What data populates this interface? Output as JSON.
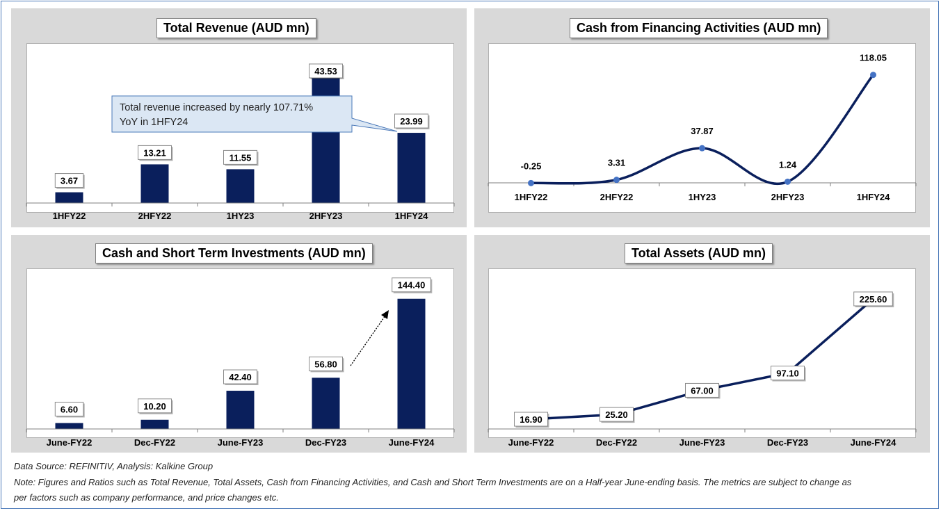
{
  "colors": {
    "bar": "#0a1f5c",
    "line": "#0a1f5c",
    "marker": "#4472c4",
    "panel_bg": "#d9d9d9",
    "callout_fill": "#dbe7f4",
    "callout_border": "#4a78b8"
  },
  "chart_data": [
    {
      "id": "revenue",
      "type": "bar",
      "title": "Total Revenue (AUD mn)",
      "categories": [
        "1HFY22",
        "2HFY22",
        "1HY23",
        "2HFY23",
        "1HFY24"
      ],
      "values": [
        3.67,
        13.21,
        11.55,
        43.53,
        23.99
      ],
      "value_labels": [
        "3.67",
        "13.21",
        "11.55",
        "43.53",
        "23.99"
      ],
      "ylim": [
        0,
        48
      ],
      "callout": {
        "lines": [
          "Total revenue increased by nearly 107.71%",
          "YoY in 1HFY24"
        ],
        "points_to": "1HFY24"
      }
    },
    {
      "id": "financing",
      "type": "line",
      "title": "Cash from Financing Activities (AUD mn)",
      "categories": [
        "1HFY22",
        "2HFY22",
        "1HY23",
        "2HFY23",
        "1HFY24"
      ],
      "values": [
        -0.25,
        3.31,
        37.87,
        1.24,
        118.05
      ],
      "value_labels": [
        "-0.25",
        "3.31",
        "37.87",
        "1.24",
        "118.05"
      ],
      "ylim": [
        -2,
        130
      ],
      "markers": true
    },
    {
      "id": "cash",
      "type": "bar",
      "title": "Cash and Short Term Investments (AUD mn)",
      "categories": [
        "June-FY22",
        "Dec-FY22",
        "June-FY23",
        "Dec-FY23",
        "June-FY24"
      ],
      "values": [
        6.6,
        10.2,
        42.4,
        56.8,
        144.4
      ],
      "value_labels": [
        "6.60",
        "10.20",
        "42.40",
        "56.80",
        "144.40"
      ],
      "ylim": [
        0,
        155
      ],
      "arrow": {
        "from": "Dec-FY23",
        "to": "June-FY24",
        "style": "dotted"
      }
    },
    {
      "id": "assets",
      "type": "line",
      "title": "Total Assets (AUD mn)",
      "categories": [
        "June-FY22",
        "Dec-FY22",
        "June-FY23",
        "Dec-FY23",
        "June-FY24"
      ],
      "values": [
        16.9,
        25.2,
        67.0,
        97.1,
        225.6
      ],
      "value_labels": [
        "16.90",
        "25.20",
        "67.00",
        "97.10",
        "225.60"
      ],
      "ylim": [
        0,
        240
      ],
      "markers": false
    }
  ],
  "footer": {
    "source": "Data Source: REFINITIV, Analysis: Kalkine Group",
    "note_line1": "Note: Figures and Ratios such as Total Revenue, Total Assets, Cash from Financing Activities, and Cash and Short Term Investments  are on a Half-year June-ending basis. The metrics are subject to change as",
    "note_line2": "per factors such as company performance, and price changes etc."
  }
}
